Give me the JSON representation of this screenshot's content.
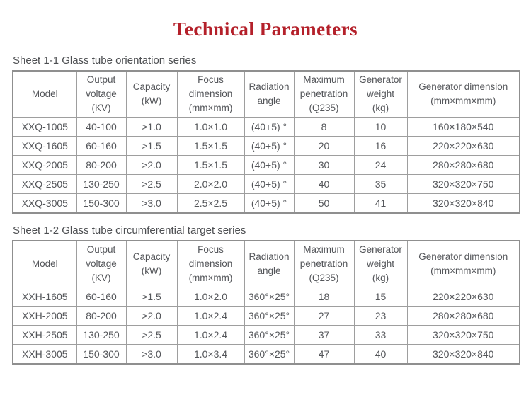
{
  "page": {
    "title": "Technical Parameters"
  },
  "colors": {
    "title_red": "#b4202a",
    "border_gray": "#9e9e9e",
    "text_gray": "#54565a"
  },
  "tables": [
    {
      "caption": "Sheet 1-1 Glass tube orientation series",
      "headers": [
        "Model",
        "Output\nvoltage\n(KV)",
        "Capacity\n(kW)",
        "Focus\ndimension\n(mm×mm)",
        "Radiation\nangle",
        "Maximum\npenetration\n(Q235)",
        "Generator\nweight\n(kg)",
        "Generator dimension\n(mm×mm×mm)"
      ],
      "rows": [
        [
          "XXQ-1005",
          "40-100",
          ">1.0",
          "1.0×1.0",
          "(40+5) °",
          "8",
          "10",
          "160×180×540"
        ],
        [
          "XXQ-1605",
          "60-160",
          ">1.5",
          "1.5×1.5",
          "(40+5) °",
          "20",
          "16",
          "220×220×630"
        ],
        [
          "XXQ-2005",
          "80-200",
          ">2.0",
          "1.5×1.5",
          "(40+5) °",
          "30",
          "24",
          "280×280×680"
        ],
        [
          "XXQ-2505",
          "130-250",
          ">2.5",
          "2.0×2.0",
          "(40+5) °",
          "40",
          "35",
          "320×320×750"
        ],
        [
          "XXQ-3005",
          "150-300",
          ">3.0",
          "2.5×2.5",
          "(40+5) °",
          "50",
          "41",
          "320×320×840"
        ]
      ]
    },
    {
      "caption": "Sheet 1-2 Glass tube circumferential target series",
      "headers": [
        "Model",
        "Output\nvoltage\n(KV)",
        "Capacity\n(kW)",
        "Focus\ndimension\n(mm×mm)",
        "Radiation\nangle",
        "Maximum\npenetration\n(Q235)",
        "Generator\nweight\n(kg)",
        "Generator dimension\n(mm×mm×mm)"
      ],
      "rows": [
        [
          "XXH-1605",
          "60-160",
          ">1.5",
          "1.0×2.0",
          "360°×25°",
          "18",
          "15",
          "220×220×630"
        ],
        [
          "XXH-2005",
          "80-200",
          ">2.0",
          "1.0×2.4",
          "360°×25°",
          "27",
          "23",
          "280×280×680"
        ],
        [
          "XXH-2505",
          "130-250",
          ">2.5",
          "1.0×2.4",
          "360°×25°",
          "37",
          "33",
          "320×320×750"
        ],
        [
          "XXH-3005",
          "150-300",
          ">3.0",
          "1.0×3.4",
          "360°×25°",
          "47",
          "40",
          "320×320×840"
        ]
      ]
    }
  ]
}
